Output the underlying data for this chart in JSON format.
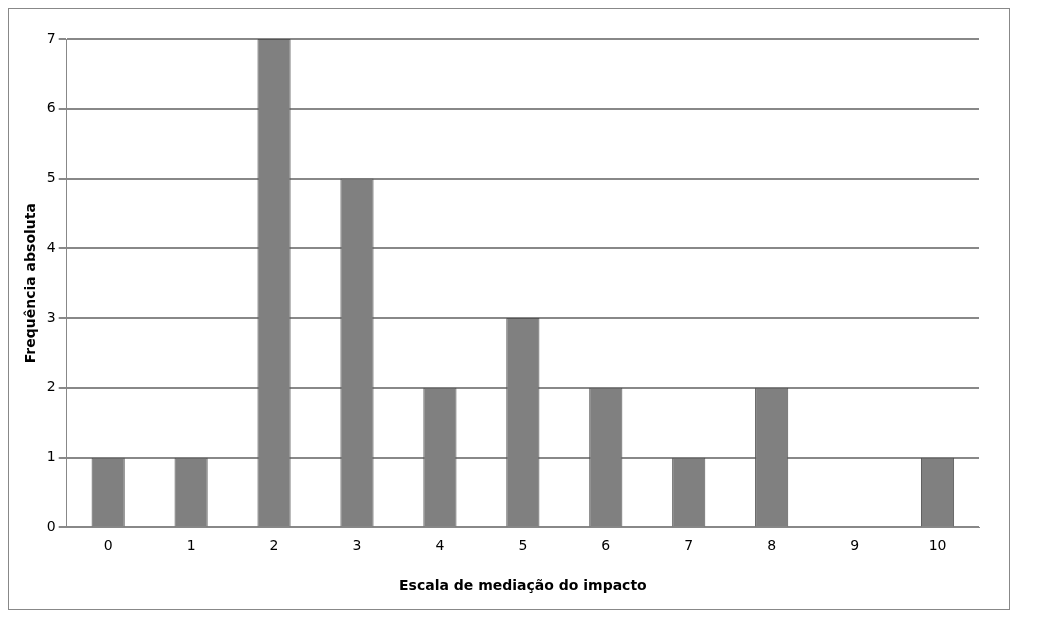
{
  "chart_data": {
    "type": "bar",
    "xlabel": "Escala de mediação do impacto",
    "ylabel": "Frequência absoluta",
    "categories": [
      "0",
      "1",
      "2",
      "3",
      "4",
      "5",
      "6",
      "7",
      "8",
      "9",
      "10"
    ],
    "values": [
      1,
      1,
      7,
      5,
      2,
      3,
      2,
      1,
      2,
      0,
      1
    ],
    "color": "#808080",
    "ylim": [
      0,
      7
    ],
    "yticks": [
      0,
      1,
      2,
      3,
      4,
      5,
      6,
      7
    ],
    "grid": "y"
  }
}
